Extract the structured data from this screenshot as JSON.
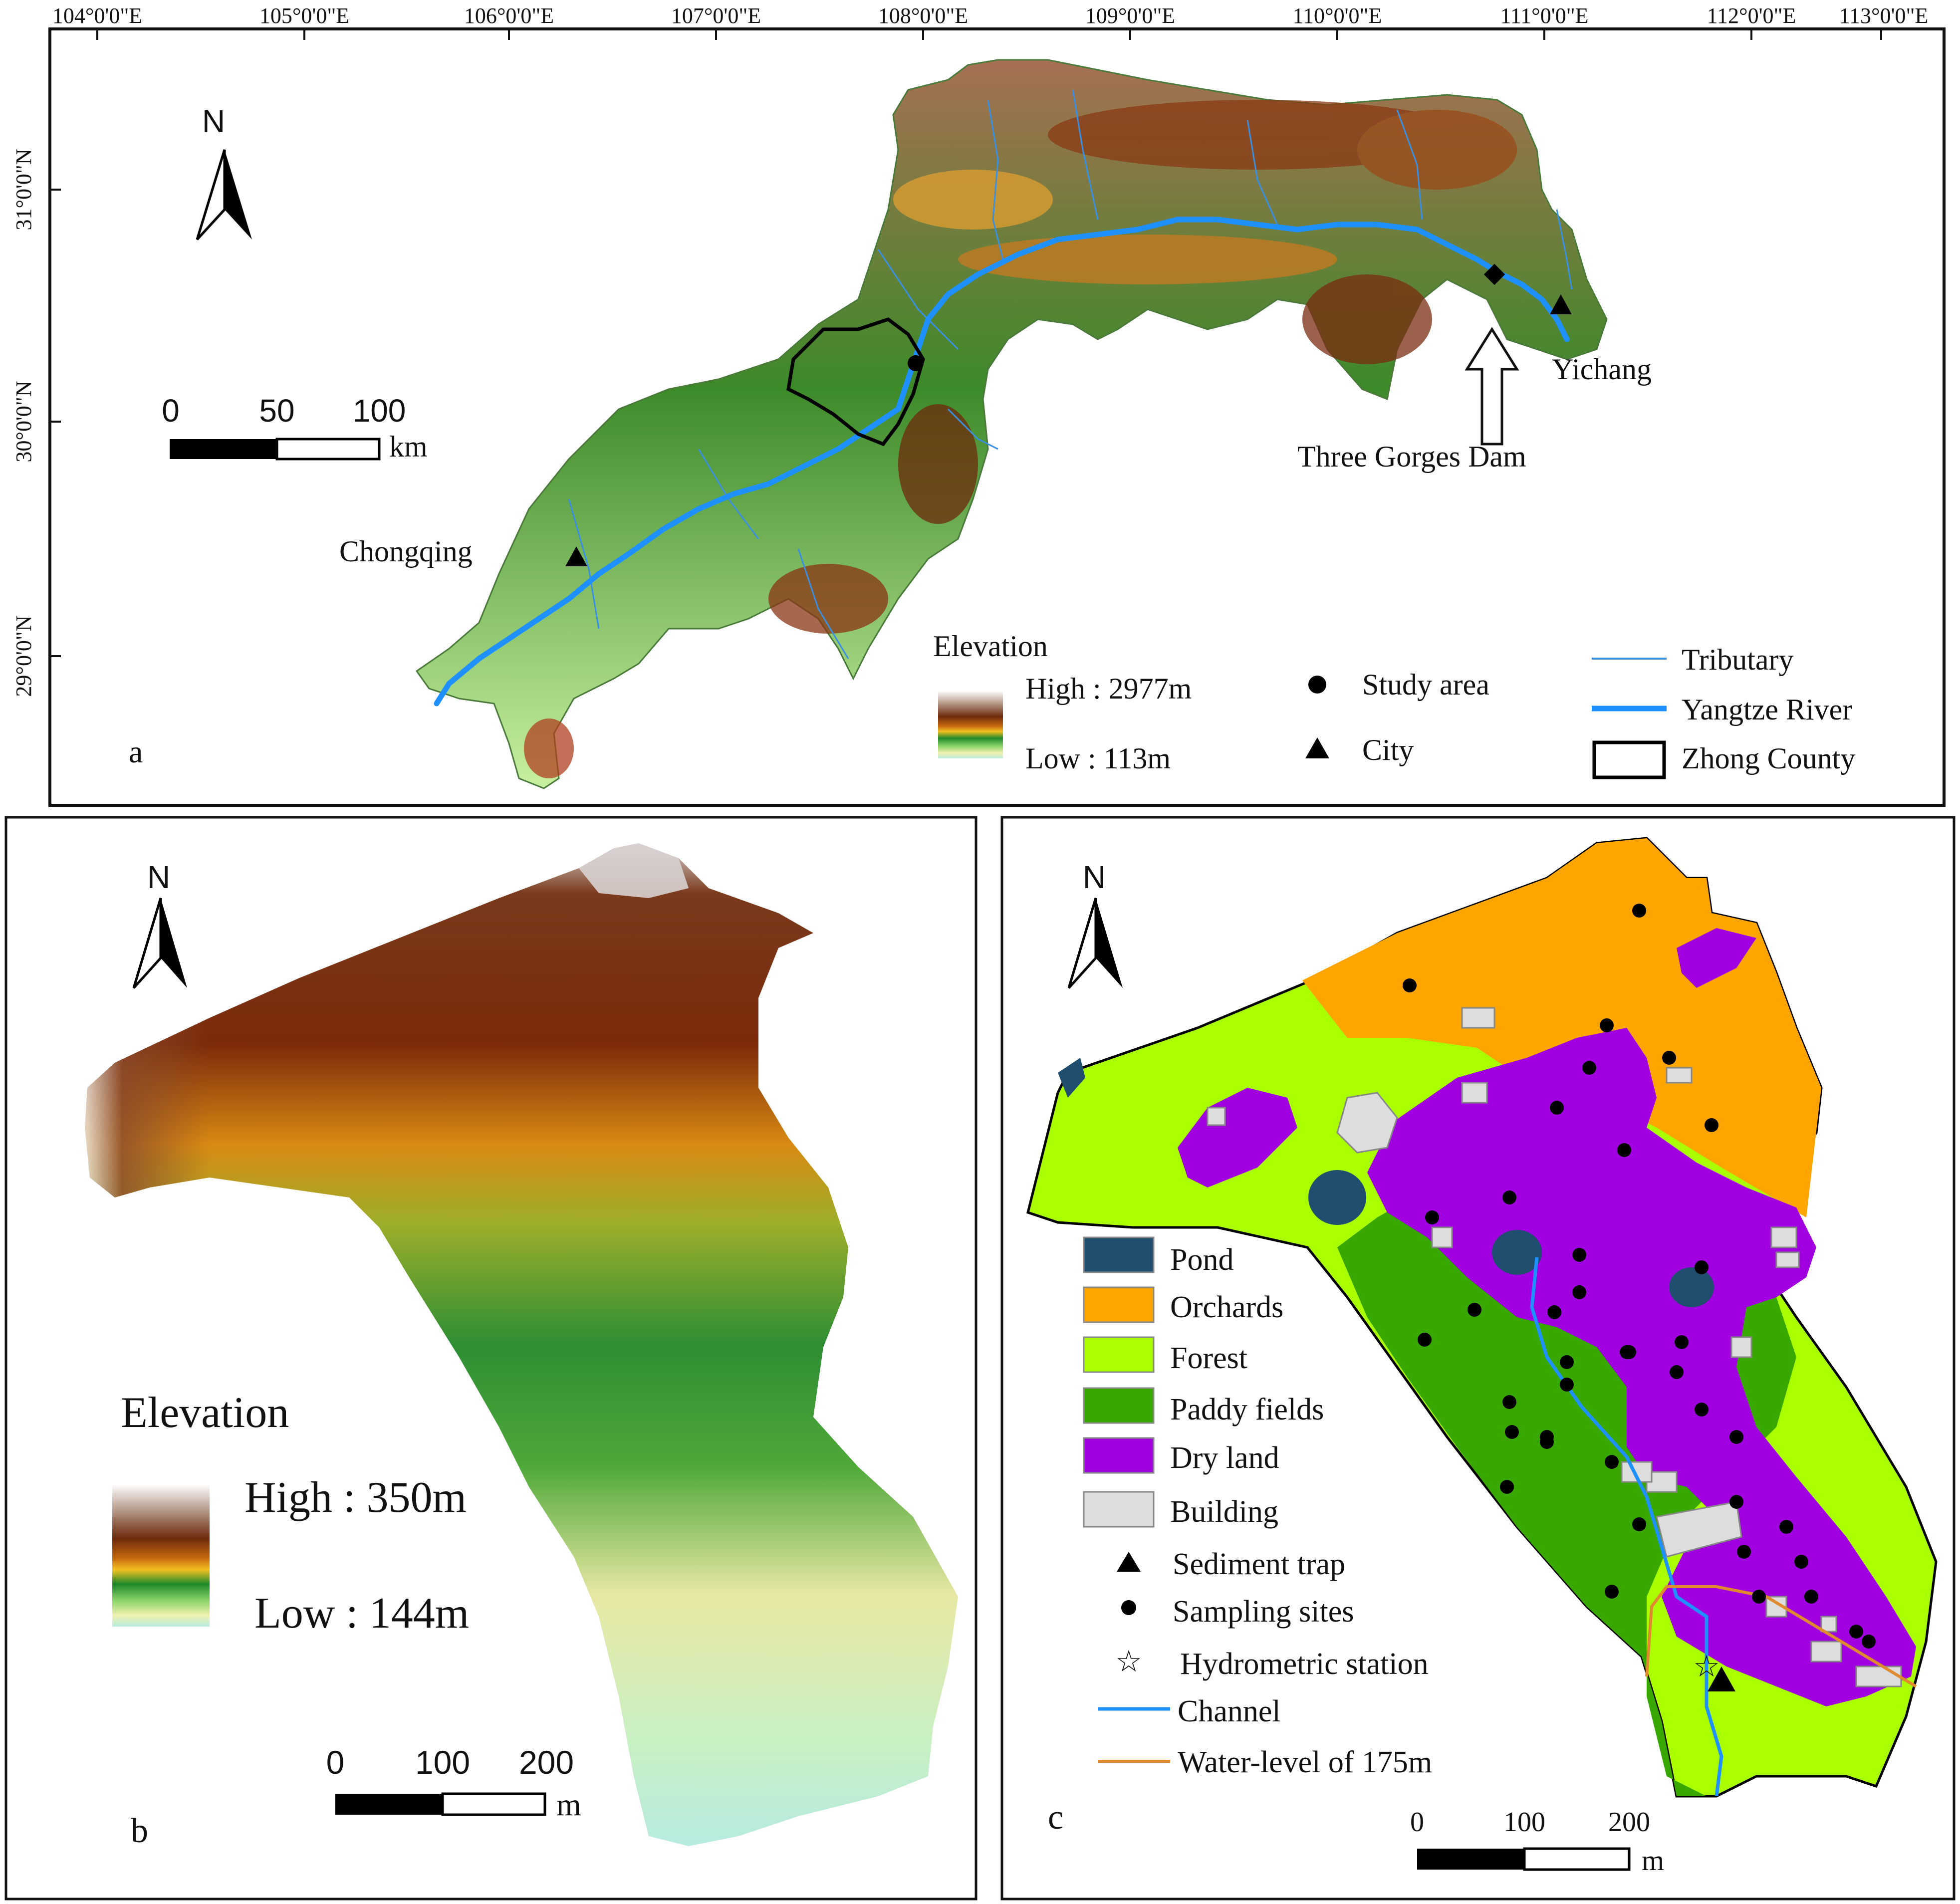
{
  "panel_a": {
    "letter": "a",
    "top_ticks": [
      "104°0'0\"E",
      "105°0'0\"E",
      "106°0'0\"E",
      "107°0'0\"E",
      "108°0'0\"E",
      "109°0'0\"E",
      "110°0'0\"E",
      "111°0'0\"E",
      "112°0'0\"E",
      "113°0'0\"E"
    ],
    "left_ticks": [
      "31°0'0\"N",
      "30°0'0\"N",
      "29°0'0\"N"
    ],
    "north": "N",
    "scale": {
      "labels": [
        "0",
        "50",
        "100"
      ],
      "unit": "km"
    },
    "places": {
      "chongqing": "Chongqing",
      "yichang": "Yichang",
      "dam": "Three Gorges Dam"
    },
    "elevation_legend": {
      "title": "Elevation",
      "high": "High : 2977m",
      "low": "Low : 113m"
    },
    "symbol_legend": {
      "study_area": "Study area",
      "city": "City"
    },
    "line_legend": {
      "tributary": "Tributary",
      "yangtze": "Yangtze River",
      "zhong": "Zhong County"
    }
  },
  "panel_b": {
    "letter": "b",
    "north": "N",
    "elevation_legend": {
      "title": "Elevation",
      "high": "High : 350m",
      "low": "Low : 144m"
    },
    "scale": {
      "labels": [
        "0",
        "100",
        "200"
      ],
      "unit": "m"
    }
  },
  "panel_c": {
    "letter": "c",
    "north": "N",
    "legend": {
      "pond": "Pond",
      "orchards": "Orchards",
      "forest": "Forest",
      "paddy": "Paddy fields",
      "dry": "Dry land",
      "building": "Building",
      "trap": "Sediment trap",
      "sites": "Sampling sites",
      "station": "Hydrometric station",
      "channel": "Channel",
      "water": "Water-level of 175m"
    },
    "scale": {
      "labels": [
        "0",
        "100",
        "200"
      ],
      "unit": "m"
    }
  },
  "colors": {
    "pond": "#1f4e6e",
    "orchards": "#ffa500",
    "forest": "#aaff00",
    "paddy": "#38a800",
    "dry": "#a000e0",
    "building": "#dddddd",
    "river": "#1e90ff",
    "water_level": "#e08a30"
  }
}
